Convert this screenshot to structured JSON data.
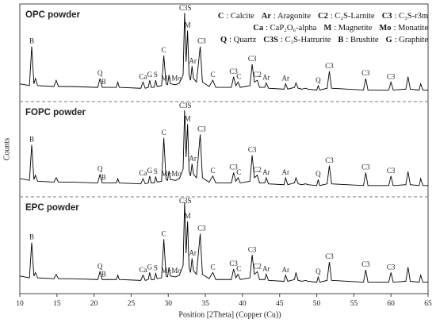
{
  "chart_data": {
    "type": "line",
    "x_label": "Position [2Theta] (Copper (Cu))",
    "y_label": "Counts",
    "xlim": [
      10,
      65
    ],
    "xticks": [
      10,
      15,
      20,
      25,
      30,
      35,
      40,
      45,
      50,
      55,
      60,
      65
    ],
    "ylim": [
      0,
      110
    ],
    "x": [
      10,
      11.3,
      11.6,
      11.9,
      12.1,
      12.4,
      14.6,
      14.9,
      15.2,
      17,
      20.5,
      20.8,
      21.1,
      23.0,
      23.2,
      23.4,
      26.3,
      26.6,
      26.9,
      27.3,
      27.5,
      27.7,
      28.1,
      28.3,
      28.5,
      29.1,
      29.4,
      29.7,
      29.9,
      30.1,
      30.3,
      31.0,
      31.5,
      32.0,
      32.2,
      32.4,
      32.6,
      32.8,
      33.0,
      33.2,
      33.4,
      33.8,
      34.3,
      34.6,
      35.5,
      36.0,
      36.4,
      38.5,
      38.8,
      39.1,
      39.4,
      39.7,
      41.0,
      41.3,
      41.6,
      42.0,
      42.3,
      43.0,
      43.2,
      43.5,
      45.6,
      45.8,
      46.1,
      47.0,
      47.2,
      47.5,
      48.0,
      48.5,
      48.8,
      50.0,
      50.2,
      50.4,
      51.4,
      51.7,
      52.0,
      56.3,
      56.6,
      56.9,
      59.7,
      60.0,
      60.3,
      62.0,
      62.3,
      62.6,
      63.8,
      64.0,
      64.3,
      65
    ],
    "series": [
      {
        "name": "OPC powder",
        "color": "#000000",
        "values": [
          20,
          18,
          62,
          20,
          26,
          18,
          17,
          24,
          17,
          17,
          16,
          26,
          16,
          16,
          22,
          16,
          15,
          22,
          15,
          16,
          24,
          16,
          16,
          24,
          17,
          18,
          52,
          20,
          19,
          30,
          20,
          19,
          21,
          30,
          100,
          45,
          80,
          30,
          24,
          40,
          26,
          22,
          62,
          22,
          17,
          24,
          16,
          16,
          28,
          18,
          22,
          16,
          18,
          42,
          22,
          24,
          16,
          16,
          21,
          15,
          14,
          20,
          14,
          16,
          21,
          15,
          14,
          15,
          14,
          13,
          18,
          13,
          15,
          34,
          15,
          13,
          26,
          13,
          13,
          22,
          13,
          14,
          28,
          14,
          13,
          20,
          13,
          13
        ]
      },
      {
        "name": "FOPC powder",
        "color": "#000000",
        "values": [
          21,
          19,
          60,
          20,
          25,
          18,
          17,
          22,
          17,
          17,
          16,
          26,
          16,
          16,
          21,
          16,
          15,
          21,
          15,
          16,
          24,
          16,
          16,
          23,
          17,
          18,
          68,
          20,
          19,
          30,
          20,
          19,
          21,
          32,
          100,
          46,
          84,
          30,
          24,
          38,
          26,
          22,
          72,
          22,
          17,
          24,
          16,
          16,
          28,
          18,
          22,
          16,
          18,
          48,
          22,
          25,
          16,
          16,
          22,
          15,
          14,
          22,
          14,
          16,
          22,
          15,
          14,
          15,
          14,
          13,
          20,
          13,
          15,
          36,
          15,
          13,
          28,
          13,
          13,
          24,
          13,
          14,
          29,
          14,
          13,
          21,
          13,
          13
        ]
      },
      {
        "name": "EPC powder",
        "color": "#000000",
        "values": [
          20,
          18,
          58,
          20,
          24,
          18,
          17,
          22,
          17,
          17,
          16,
          25,
          16,
          16,
          21,
          16,
          15,
          21,
          15,
          16,
          24,
          16,
          16,
          23,
          17,
          18,
          62,
          20,
          19,
          30,
          20,
          19,
          21,
          32,
          104,
          46,
          82,
          30,
          24,
          40,
          26,
          22,
          68,
          22,
          17,
          24,
          16,
          16,
          28,
          18,
          22,
          16,
          18,
          44,
          22,
          25,
          16,
          16,
          22,
          15,
          14,
          21,
          14,
          16,
          24,
          15,
          14,
          15,
          14,
          13,
          19,
          13,
          15,
          36,
          15,
          13,
          27,
          13,
          13,
          24,
          13,
          14,
          30,
          14,
          13,
          21,
          13,
          13
        ]
      }
    ],
    "peak_labels": [
      {
        "text": "B",
        "x": 11.6
      },
      {
        "text": "Q",
        "x": 20.8
      },
      {
        "text": "B",
        "x": 21.3
      },
      {
        "text": "Ca",
        "x": 26.6
      },
      {
        "text": "G",
        "x": 27.5
      },
      {
        "text": "S",
        "x": 28.3
      },
      {
        "text": "C",
        "x": 29.4
      },
      {
        "text": "M+Mo",
        "x": 30.4
      },
      {
        "text": "C3S",
        "x": 32.3
      },
      {
        "text": "M",
        "x": 32.6
      },
      {
        "text": "Ar",
        "x": 33.3
      },
      {
        "text": "C3",
        "x": 34.5
      },
      {
        "text": "C",
        "x": 36.0
      },
      {
        "text": "C3",
        "x": 38.8
      },
      {
        "text": "C",
        "x": 39.5
      },
      {
        "text": "C3",
        "x": 41.3
      },
      {
        "text": "C2",
        "x": 42.0
      },
      {
        "text": "Ar",
        "x": 43.2
      },
      {
        "text": "Ar",
        "x": 45.8
      },
      {
        "text": "Q",
        "x": 50.2
      },
      {
        "text": "C3",
        "x": 51.7
      },
      {
        "text": "C3",
        "x": 56.6
      },
      {
        "text": "C3",
        "x": 60.0
      }
    ],
    "legend_key": [
      [
        {
          "symbol": "C",
          "meaning": ": Calcite"
        },
        {
          "symbol": "Ar",
          "meaning": ": Aragonite"
        },
        {
          "symbol": "C2",
          "meaning": ": C₂S-Larnite"
        },
        {
          "symbol": "C3",
          "meaning": ": C₃S-r3m"
        }
      ],
      [
        {
          "symbol": "Ca",
          "meaning": ": CaP₂O₆-alpha"
        },
        {
          "symbol": "M",
          "meaning": ": Magnetite"
        },
        {
          "symbol": "Mo",
          "meaning": ": Monatite"
        }
      ],
      [
        {
          "symbol": "Q",
          "meaning": ": Quartz"
        },
        {
          "symbol": "C3S",
          "meaning": ": C₃S-Hatrurite"
        },
        {
          "symbol": "B",
          "meaning": ": Brushite"
        },
        {
          "symbol": "G",
          "meaning": ": Graphite"
        }
      ]
    ]
  }
}
